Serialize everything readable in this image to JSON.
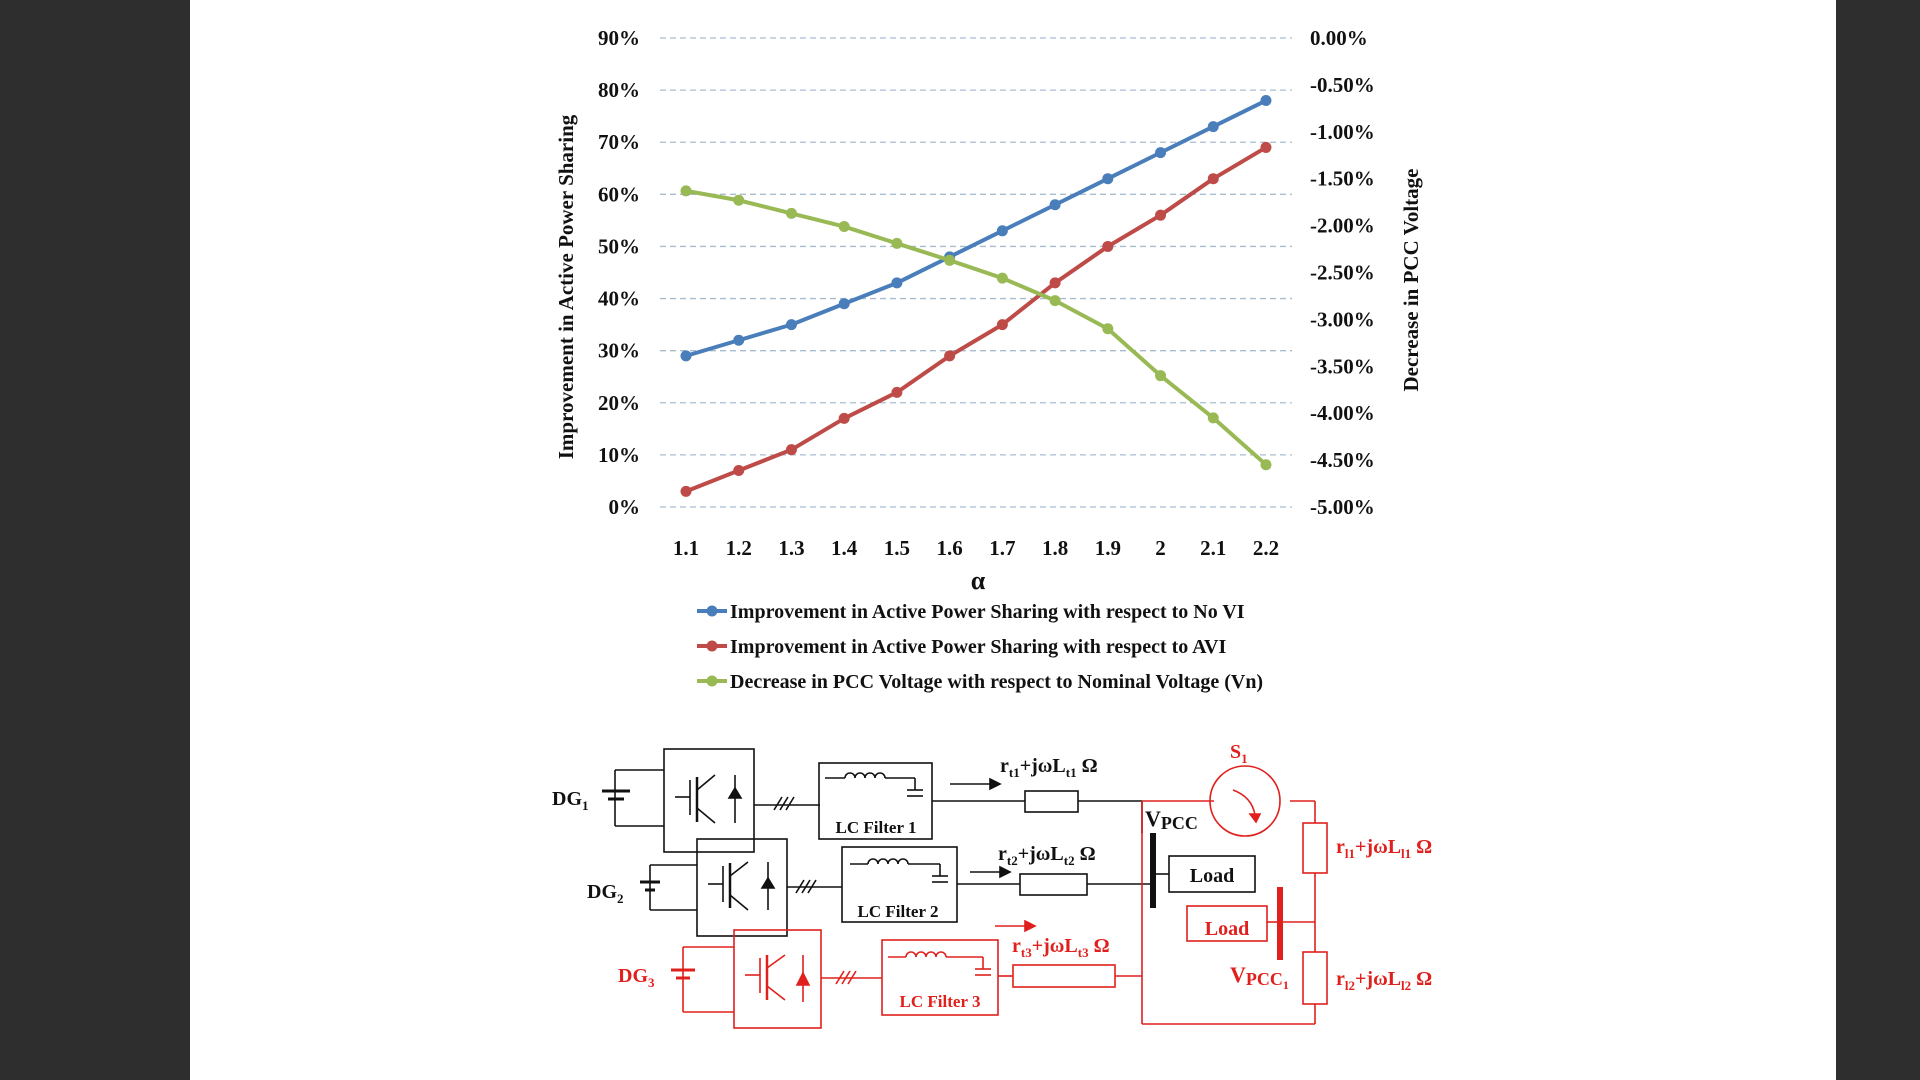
{
  "chart_data": {
    "type": "line",
    "title": "",
    "xlabel": "α",
    "ylabel": "Improvement in Active Power Sharing",
    "y2label": "Decrease in PCC Voltage",
    "x": [
      "1.1",
      "1.2",
      "1.3",
      "1.4",
      "1.5",
      "1.6",
      "1.7",
      "1.8",
      "1.9",
      "2",
      "2.1",
      "2.2"
    ],
    "ylim": [
      0,
      90
    ],
    "y_ticks": [
      "0%",
      "10%",
      "20%",
      "30%",
      "40%",
      "50%",
      "60%",
      "70%",
      "80%",
      "90%"
    ],
    "y2lim": [
      -5.0,
      0.0
    ],
    "y2_ticks": [
      "0.00%",
      "-0.50%",
      "-1.00%",
      "-1.50%",
      "-2.00%",
      "-2.50%",
      "-3.00%",
      "-3.50%",
      "-4.00%",
      "-4.50%",
      "-5.00%"
    ],
    "grid": "horizontal dashed",
    "legend_position": "bottom",
    "series": [
      {
        "name": "Improvement in Active Power Sharing with respect to No VI",
        "axis": "left",
        "color": "#4a7ebb",
        "values": [
          29,
          32,
          35,
          39,
          43,
          48,
          53,
          58,
          63,
          68,
          73,
          78
        ]
      },
      {
        "name": "Improvement in Active Power Sharing with respect to AVI",
        "axis": "left",
        "color": "#be4b48",
        "values": [
          3,
          7,
          11,
          17,
          22,
          29,
          35,
          43,
          50,
          56,
          63,
          69
        ]
      },
      {
        "name": "Decrease in PCC Voltage with respect to Nominal Voltage (Vn)",
        "axis": "right",
        "color": "#98b954",
        "values": [
          -1.63,
          -1.73,
          -1.87,
          -2.01,
          -2.19,
          -2.37,
          -2.56,
          -2.8,
          -3.1,
          -3.6,
          -4.05,
          -4.55
        ]
      }
    ]
  },
  "circuit": {
    "dg1": "DG",
    "dg1_sub": "1",
    "dg2": "DG",
    "dg2_sub": "2",
    "dg3": "DG",
    "dg3_sub": "3",
    "filter1": "LC Filter 1",
    "filter2": "LC Filter 2",
    "filter3": "LC Filter 3",
    "line1_r": "r",
    "line1_rsub": "t1",
    "line1_mid": "+jωL",
    "line1_lsub": "t1",
    "line1_unit": " Ω",
    "line2_r": "r",
    "line2_rsub": "t2",
    "line2_mid": "+jωL",
    "line2_lsub": "t2",
    "line2_unit": " Ω",
    "line3_r": "r",
    "line3_rsub": "t3",
    "line3_mid": "+jωL",
    "line3_lsub": "t3",
    "line3_unit": " Ω",
    "tie1_r": "r",
    "tie1_rsub": "l1",
    "tie1_mid": "+jωL",
    "tie1_lsub": "l1",
    "tie1_unit": " Ω",
    "tie2_r": "r",
    "tie2_rsub": "l2",
    "tie2_mid": "+jωL",
    "tie2_lsub": "l2",
    "tie2_unit": " Ω",
    "switch": "S",
    "switch_sub": "1",
    "vpcc": "V",
    "vpcc_sub": "PCC",
    "vpcc1": "V",
    "vpcc1_sub": "PCC",
    "vpcc1_sub2": "1",
    "load1": "Load",
    "load2": "Load"
  },
  "colors": {
    "black": "#111111",
    "red": "#e0201d",
    "grid": "#a8bcd0"
  }
}
